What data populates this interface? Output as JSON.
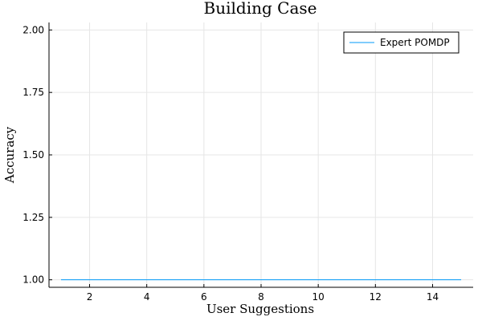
{
  "chart_data": {
    "type": "line",
    "title": "Building Case",
    "xlabel": "User Suggestions",
    "ylabel": "Accuracy",
    "xlim": [
      0.58,
      15.42
    ],
    "ylim": [
      0.97,
      2.03
    ],
    "xticks": [
      2,
      4,
      6,
      8,
      10,
      12,
      14
    ],
    "yticks": [
      1.0,
      1.25,
      1.5,
      1.75,
      2.0
    ],
    "ytick_labels": [
      "1.00",
      "1.25",
      "1.50",
      "1.75",
      "2.00"
    ],
    "grid": true,
    "legend_position": "top-right",
    "series": [
      {
        "name": "Expert POMDP",
        "color": "#009af9",
        "x": [
          1,
          2,
          3,
          4,
          5,
          6,
          7,
          8,
          9,
          10,
          11,
          12,
          13,
          14,
          15
        ],
        "y": [
          1,
          1,
          1,
          1,
          1,
          1,
          1,
          1,
          1,
          1,
          1,
          1,
          1,
          1,
          1
        ]
      }
    ]
  }
}
